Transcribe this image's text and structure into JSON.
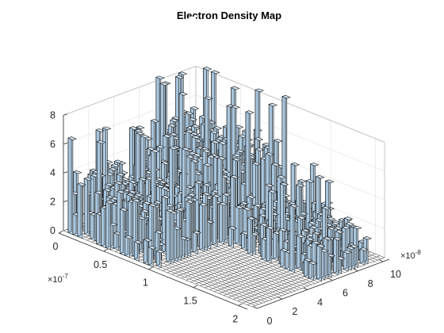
{
  "chart_data": {
    "type": "bar3",
    "title": "Electron Density Map",
    "x_axis": {
      "ticks": [
        0,
        0.5,
        1,
        1.5,
        2
      ],
      "tick_labels": [
        "0",
        "0.5",
        "1",
        "1.5",
        "2"
      ],
      "range": [
        0,
        2.1
      ],
      "exponent_label": "×10",
      "exponent": "-7"
    },
    "y_axis": {
      "ticks": [
        0,
        2,
        4,
        6,
        8,
        10
      ],
      "tick_labels": [
        "0",
        "2",
        "4",
        "6",
        "8",
        "10"
      ],
      "range": [
        0,
        10.5
      ],
      "exponent_label": "×10",
      "exponent": "-8"
    },
    "z_axis": {
      "ticks": [
        0,
        2,
        4,
        6,
        8
      ],
      "tick_labels": [
        "0",
        "2",
        "4",
        "6",
        "8"
      ],
      "range": [
        0,
        8
      ]
    },
    "grid": true,
    "bar_color": "#c4dcee",
    "edge_color": "#1a1a1a",
    "note": "heights of the 40x40 bar grid are estimated from the rendered image",
    "regions": [
      {
        "region": "x 0-1.05e-7, y 0-5.2e-8",
        "typical_height": 3,
        "max_height": 7
      },
      {
        "region": "x 1.05e-7-2.1e-7, y 0-5.2e-8",
        "typical_height": 0,
        "max_height": 0
      },
      {
        "region": "x 0-1.05e-7, y 5.2e-8-10.5e-8",
        "typical_height": 4,
        "max_height": 8.5
      },
      {
        "region": "x 1.05e-7-2.1e-7, y 5.2e-8-10.5e-8",
        "typical_height": 1.5,
        "max_height": 4.5
      }
    ]
  }
}
